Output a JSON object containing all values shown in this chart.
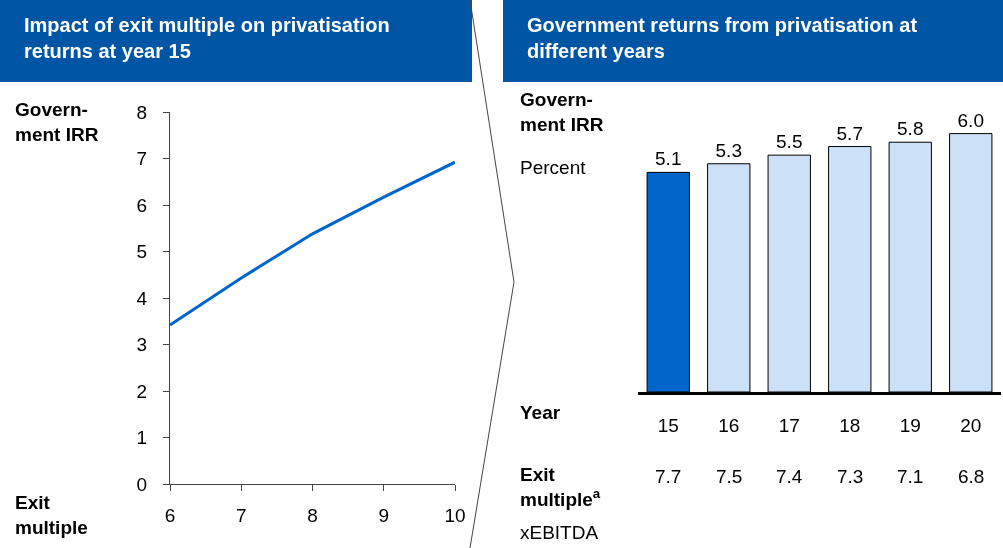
{
  "chart_data": [
    {
      "type": "line",
      "title": "Impact of exit multiple on privatisation returns at year 15",
      "xlabel": "Exit multiple",
      "ylabel": "Govern-ment IRR",
      "x": [
        6,
        7,
        8,
        9,
        10
      ],
      "series": [
        {
          "color": "#0066cc",
          "values": [
            3.42,
            4.43,
            5.38,
            6.17,
            6.92
          ]
        }
      ],
      "xlim": [
        6,
        10
      ],
      "xticks": [
        6,
        7,
        8,
        9,
        10
      ],
      "ylim": [
        0,
        8
      ],
      "yticks": [
        0,
        1,
        2,
        3,
        4,
        5,
        6,
        7,
        8
      ],
      "grid": false,
      "marker": "none",
      "line_style": "solid"
    },
    {
      "type": "bar",
      "title": "Government returns from privatisation at different years",
      "xlabel": "Year",
      "ylabel": "Govern-ment IRR",
      "categories": [
        "15",
        "16",
        "17",
        "18",
        "19",
        "20"
      ],
      "values": [
        5.1,
        5.3,
        5.5,
        5.7,
        5.8,
        6.0
      ],
      "colors": [
        "#0066cc",
        "#cce0f7",
        "#cce0f7",
        "#cce0f7",
        "#cce0f7",
        "#cce0f7"
      ],
      "value_labels": [
        "5.1",
        "5.3",
        "5.5",
        "5.7",
        "5.8",
        "6.0"
      ],
      "tick_labels": "x",
      "grid": false,
      "annotations": [
        "Percent",
        "Exit multiple$^{a}$",
        "xEBITDA",
        "7.7",
        "7.5",
        "7.4",
        "7.3",
        "7.1",
        "6.8"
      ]
    }
  ]
}
